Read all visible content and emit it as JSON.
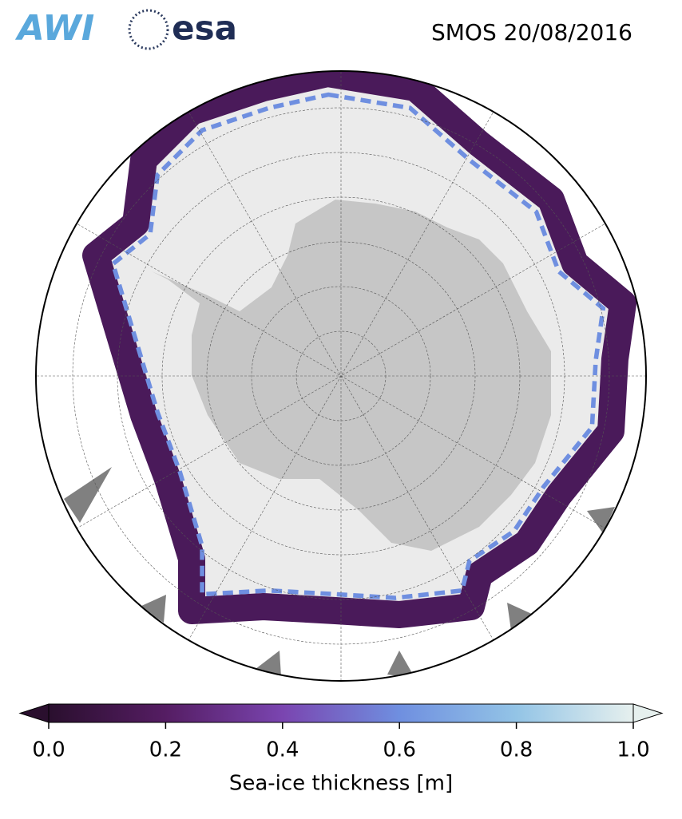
{
  "header": {
    "logos": [
      "AWI",
      "esa"
    ],
    "title": "SMOS 20/08/2016"
  },
  "colorbar": {
    "label": "Sea-ice thickness [m]",
    "lim": [
      0,
      1
    ],
    "ticks": [
      {
        "value": 0,
        "label": "0.0"
      },
      {
        "value": 0.2,
        "label": "0.2"
      },
      {
        "value": 0.4,
        "label": "0.4"
      },
      {
        "value": 0.6,
        "label": "0.6"
      },
      {
        "value": 0.8,
        "label": "0.8"
      },
      {
        "value": 1,
        "label": "1.0"
      }
    ],
    "colors": [
      "#2a0f2e",
      "#551d63",
      "#7a45b0",
      "#6f8fe0",
      "#93c4e6",
      "#e6f0ee"
    ]
  }
}
